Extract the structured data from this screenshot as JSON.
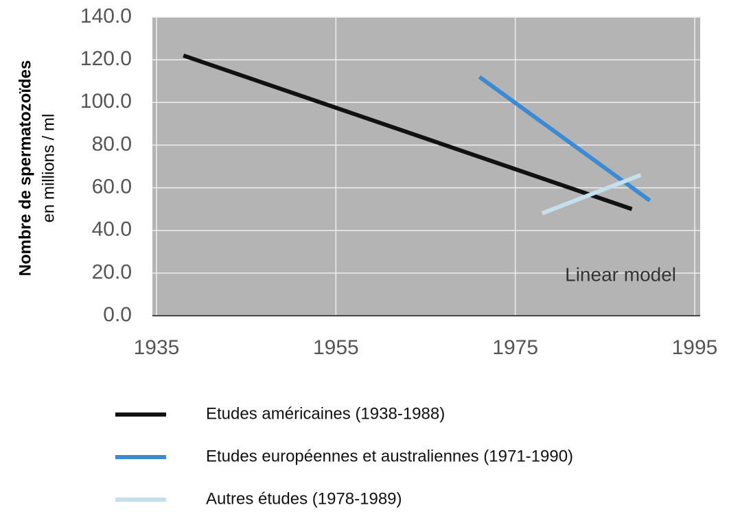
{
  "chart_data": {
    "type": "line",
    "y_label": "Nombre de spermatozoïdes",
    "y_sublabel": "en millions / ml",
    "annotation": "Linear model",
    "xlim": [
      1935,
      1995
    ],
    "xticks": [
      1935,
      1955,
      1975,
      1995
    ],
    "ylim": [
      0,
      140
    ],
    "yticks": [
      {
        "value": 0,
        "label": "0.0"
      },
      {
        "value": 20,
        "label": "20.0"
      },
      {
        "value": 40,
        "label": "40.0"
      },
      {
        "value": 60,
        "label": "60.0"
      },
      {
        "value": 80,
        "label": "80.0"
      },
      {
        "value": 100,
        "label": "100.0"
      },
      {
        "value": 120,
        "label": "120.0"
      },
      {
        "value": 140,
        "label": "140.0"
      }
    ],
    "grid": true,
    "series": [
      {
        "name": "Etudes américaines (1938-1988)",
        "color": "#111111",
        "x": [
          1938,
          1988
        ],
        "values": [
          122,
          50
        ]
      },
      {
        "name": "Etudes européennes et australiennes (1971-1990)",
        "color": "#3a8ad6",
        "x": [
          1971,
          1990
        ],
        "values": [
          112,
          54
        ]
      },
      {
        "name": "Autres études (1978-1989)",
        "color": "#c4e0ec",
        "x": [
          1978,
          1989
        ],
        "values": [
          48,
          66
        ]
      }
    ]
  }
}
